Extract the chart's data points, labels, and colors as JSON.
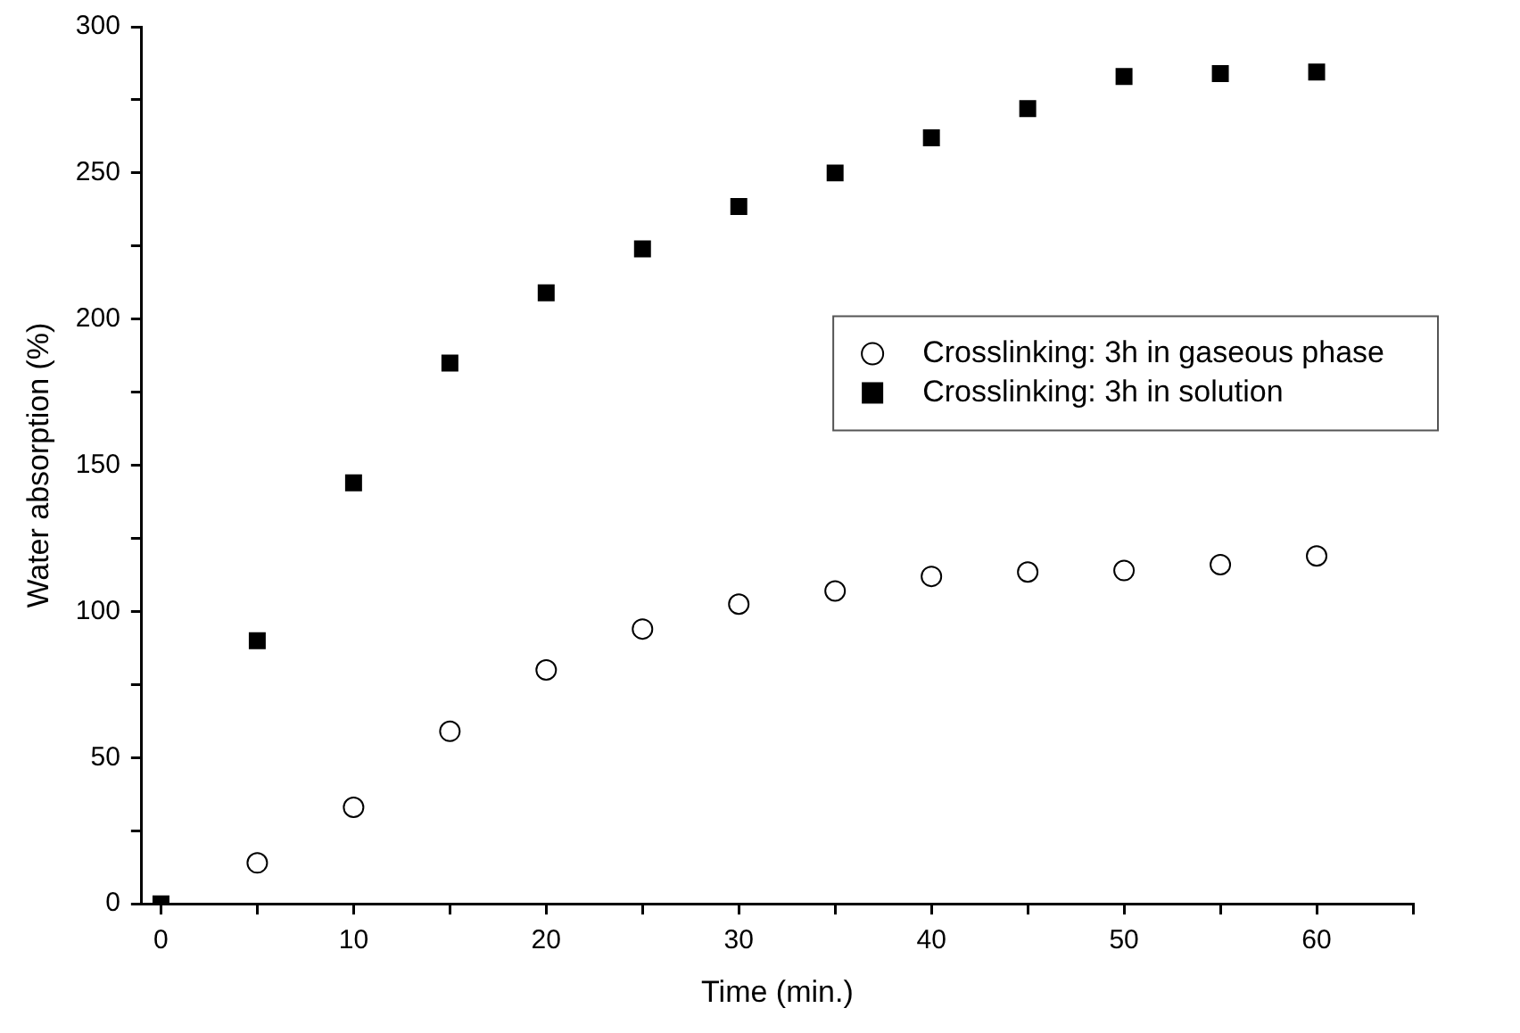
{
  "chart_data": {
    "type": "scatter",
    "xlabel": "Time (min.)",
    "ylabel": "Water absorption (%)",
    "x": [
      0,
      5,
      10,
      15,
      20,
      25,
      30,
      35,
      40,
      45,
      50,
      55,
      60
    ],
    "series": [
      {
        "name": "Crosslinking: 3h in gaseous phase",
        "color": "#000000",
        "marker": "circle",
        "values": [
          null,
          14,
          33,
          59,
          80,
          94,
          102.5,
          107,
          112,
          113.5,
          114,
          116,
          119
        ]
      },
      {
        "name": "Crosslinking: 3h in solution",
        "color": "#000000",
        "marker": "square",
        "values": [
          0,
          90,
          144,
          185,
          209,
          224,
          238.5,
          250,
          262,
          272,
          283,
          284,
          284.5
        ]
      }
    ],
    "xlim": [
      -1,
      65
    ],
    "xticks": [
      0,
      {
        "value": 5,
        "label": null
      },
      10,
      {
        "value": 15,
        "label": null
      },
      20,
      {
        "value": 25,
        "label": null
      },
      30,
      {
        "value": 35,
        "label": null
      },
      40,
      {
        "value": 45,
        "label": null
      },
      50,
      {
        "value": 55,
        "label": null
      },
      60,
      {
        "value": 65,
        "label": null
      }
    ],
    "ylim": [
      0,
      300
    ],
    "yticks": [
      0,
      {
        "value": 25,
        "label": null
      },
      50,
      {
        "value": 75,
        "label": null
      },
      100,
      {
        "value": 125,
        "label": null
      },
      150,
      {
        "value": 175,
        "label": null
      },
      200,
      {
        "value": 225,
        "label": null
      },
      250,
      {
        "value": 275,
        "label": null
      },
      300
    ],
    "grid": false,
    "legend": "right"
  }
}
